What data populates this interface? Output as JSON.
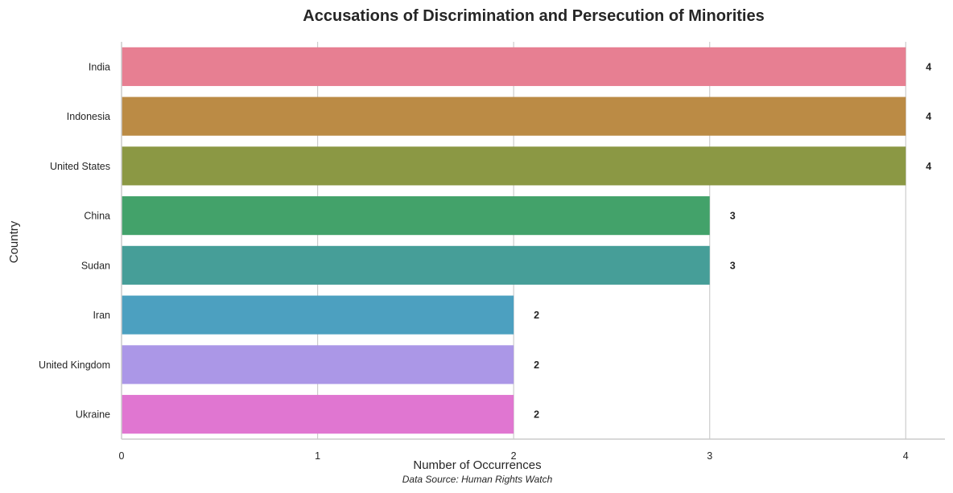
{
  "chart_data": {
    "type": "bar",
    "orientation": "horizontal",
    "title": "Accusations of Discrimination and Persecution of Minorities",
    "xlabel": "Number of Occurrences",
    "ylabel": "Country",
    "source_note": "Data Source: Human Rights Watch",
    "xlim": [
      0,
      4.2
    ],
    "x_ticks": [
      0,
      1,
      2,
      3,
      4
    ],
    "grid": true,
    "categories": [
      "India",
      "Indonesia",
      "United States",
      "China",
      "Sudan",
      "Iran",
      "United Kingdom",
      "Ukraine"
    ],
    "values": [
      4,
      4,
      4,
      3,
      3,
      2,
      2,
      2
    ],
    "colors": [
      "#e77f92",
      "#bb8b45",
      "#8b9844",
      "#43a26a",
      "#469e98",
      "#4ca0c0",
      "#ab97e7",
      "#e076d1"
    ],
    "show_value_labels": true
  }
}
